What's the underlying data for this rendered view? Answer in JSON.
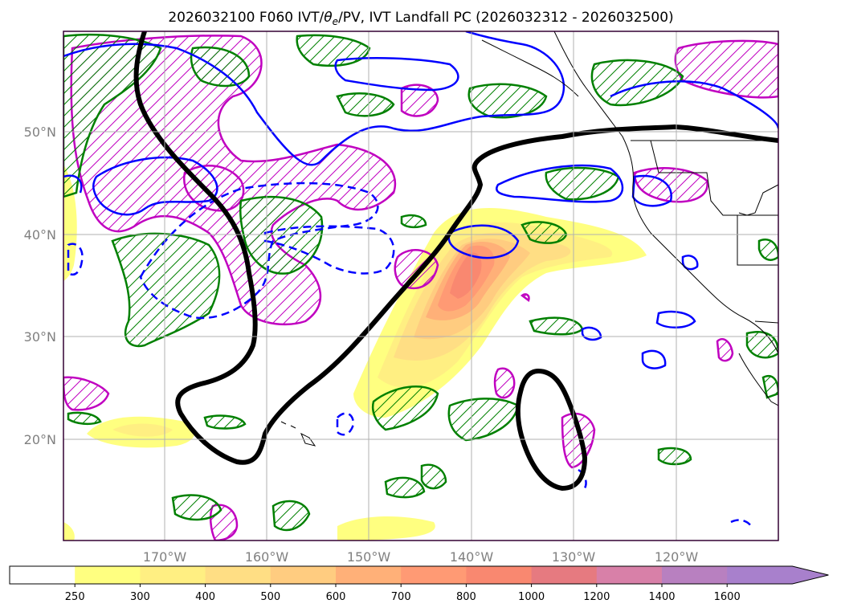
{
  "title": "2026032100 F060 IVT/θe/PV, IVT Landfall PC (2026032312 - 2026032500)",
  "title_parts": {
    "prefix": "2026032100 F060 IVT/",
    "theta": "θ",
    "theta_sub": "e",
    "suffix": "/PV, IVT Landfall PC (2026032312 - 2026032500)"
  },
  "lat_ticks": [
    "50°N",
    "40°N",
    "30°N",
    "20°N"
  ],
  "lon_ticks": [
    "170°W",
    "160°W",
    "150°W",
    "140°W",
    "130°W",
    "120°W"
  ],
  "colorbar": {
    "labels": [
      "250",
      "300",
      "400",
      "500",
      "600",
      "700",
      "800",
      "1000",
      "1200",
      "1400",
      "1600"
    ],
    "colors": [
      "#ffffff",
      "#ffff80",
      "#ffef82",
      "#ffde84",
      "#ffcc80",
      "#ffb078",
      "#ff9a74",
      "#f98870",
      "#e67a80",
      "#d880a8",
      "#b880c0",
      "#a880cc"
    ]
  },
  "colors": {
    "pv_contour": "#008000",
    "theta_contour": "#0000ff",
    "hatch": "#c000c0",
    "pc_contour": "#000000",
    "grid": "#b0b0b0",
    "frame": "#330033"
  }
}
